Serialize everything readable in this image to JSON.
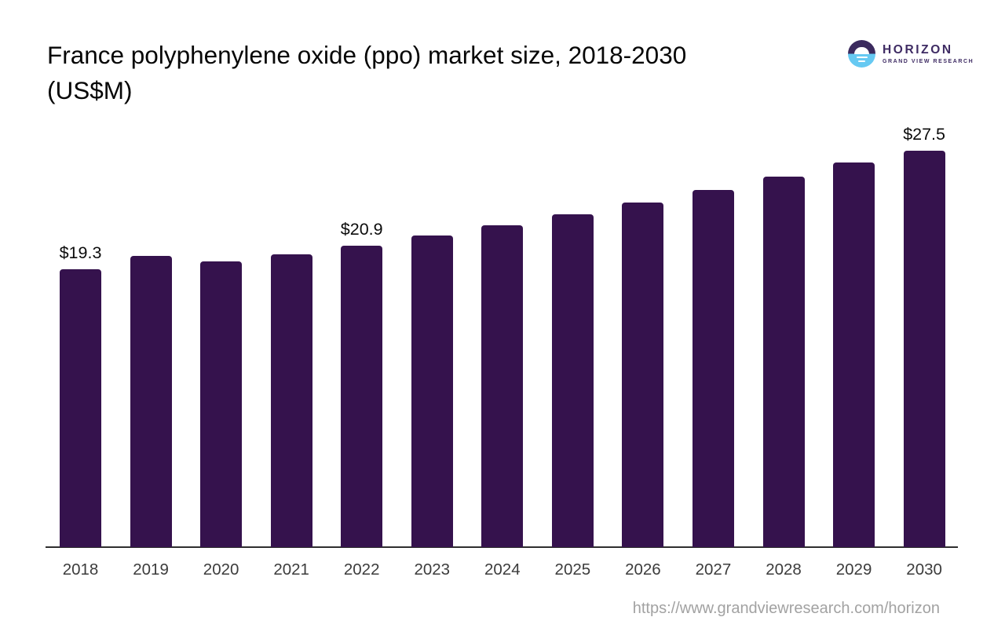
{
  "title": {
    "line1": "France polyphenylene oxide (ppo) market size, 2018-2030",
    "line2": "(US$M)"
  },
  "logo": {
    "wordmark": "HORIZON",
    "subtitle": "GRAND VIEW RESEARCH",
    "mark_top_color": "#3b2a5e",
    "mark_bottom_color": "#66c9f2"
  },
  "footer": {
    "source_url": "https://www.grandviewresearch.com/horizon"
  },
  "chart_data": {
    "type": "bar",
    "title": "France polyphenylene oxide (ppo) market size, 2018-2030 (US$M)",
    "categories": [
      "2018",
      "2019",
      "2020",
      "2021",
      "2022",
      "2023",
      "2024",
      "2025",
      "2026",
      "2027",
      "2028",
      "2029",
      "2030"
    ],
    "values": [
      19.3,
      20.2,
      19.8,
      20.3,
      20.9,
      21.6,
      22.3,
      23.1,
      23.9,
      24.8,
      25.7,
      26.7,
      27.5
    ],
    "bar_labels": {
      "2018": "$19.3",
      "2022": "$20.9",
      "2030": "$27.5"
    },
    "bar_color": "#35124d",
    "xlabel": "",
    "ylabel": "US$M",
    "ylim": [
      0,
      28
    ],
    "grid": false,
    "legend": false,
    "y_axis_visible": false
  }
}
